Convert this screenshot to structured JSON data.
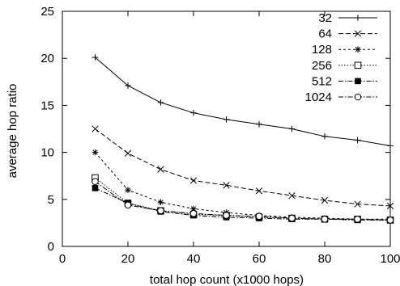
{
  "chart_data": {
    "type": "line",
    "xlabel": "total hop count (x1000 hops)",
    "ylabel": "average hop ratio",
    "xlim": [
      0,
      100
    ],
    "ylim": [
      0,
      25
    ],
    "xticks": [
      0,
      20,
      40,
      60,
      80,
      100
    ],
    "yticks": [
      0,
      5,
      10,
      15,
      20,
      25
    ],
    "grid": false,
    "legend_position": "top-right",
    "x": [
      10,
      20,
      30,
      40,
      50,
      60,
      70,
      80,
      90,
      100
    ],
    "series": [
      {
        "name": "32",
        "marker": "plus",
        "dash": "solid",
        "values": [
          20.1,
          17.1,
          15.3,
          14.2,
          13.5,
          13.0,
          12.5,
          11.7,
          11.3,
          10.7
        ]
      },
      {
        "name": "64",
        "marker": "cross",
        "dash": "dashed",
        "values": [
          12.5,
          9.9,
          8.2,
          7.0,
          6.5,
          5.9,
          5.4,
          4.9,
          4.5,
          4.3
        ]
      },
      {
        "name": "128",
        "marker": "star",
        "dash": "short-dash",
        "values": [
          10.0,
          6.0,
          4.7,
          4.0,
          3.6,
          3.3,
          3.1,
          3.0,
          2.9,
          2.9
        ]
      },
      {
        "name": "256",
        "marker": "open-square",
        "dash": "dotted",
        "values": [
          7.3,
          4.6,
          3.8,
          3.4,
          3.3,
          3.1,
          3.0,
          2.9,
          2.9,
          2.8
        ]
      },
      {
        "name": "512",
        "marker": "filled-square",
        "dash": "dash-dot",
        "values": [
          6.2,
          4.6,
          3.7,
          3.3,
          3.1,
          3.0,
          2.9,
          2.9,
          2.8,
          2.8
        ]
      },
      {
        "name": "1024",
        "marker": "open-circle",
        "dash": "dash-dot",
        "values": [
          6.9,
          4.4,
          3.8,
          3.5,
          3.3,
          3.2,
          3.0,
          2.9,
          2.9,
          2.8
        ]
      }
    ]
  }
}
